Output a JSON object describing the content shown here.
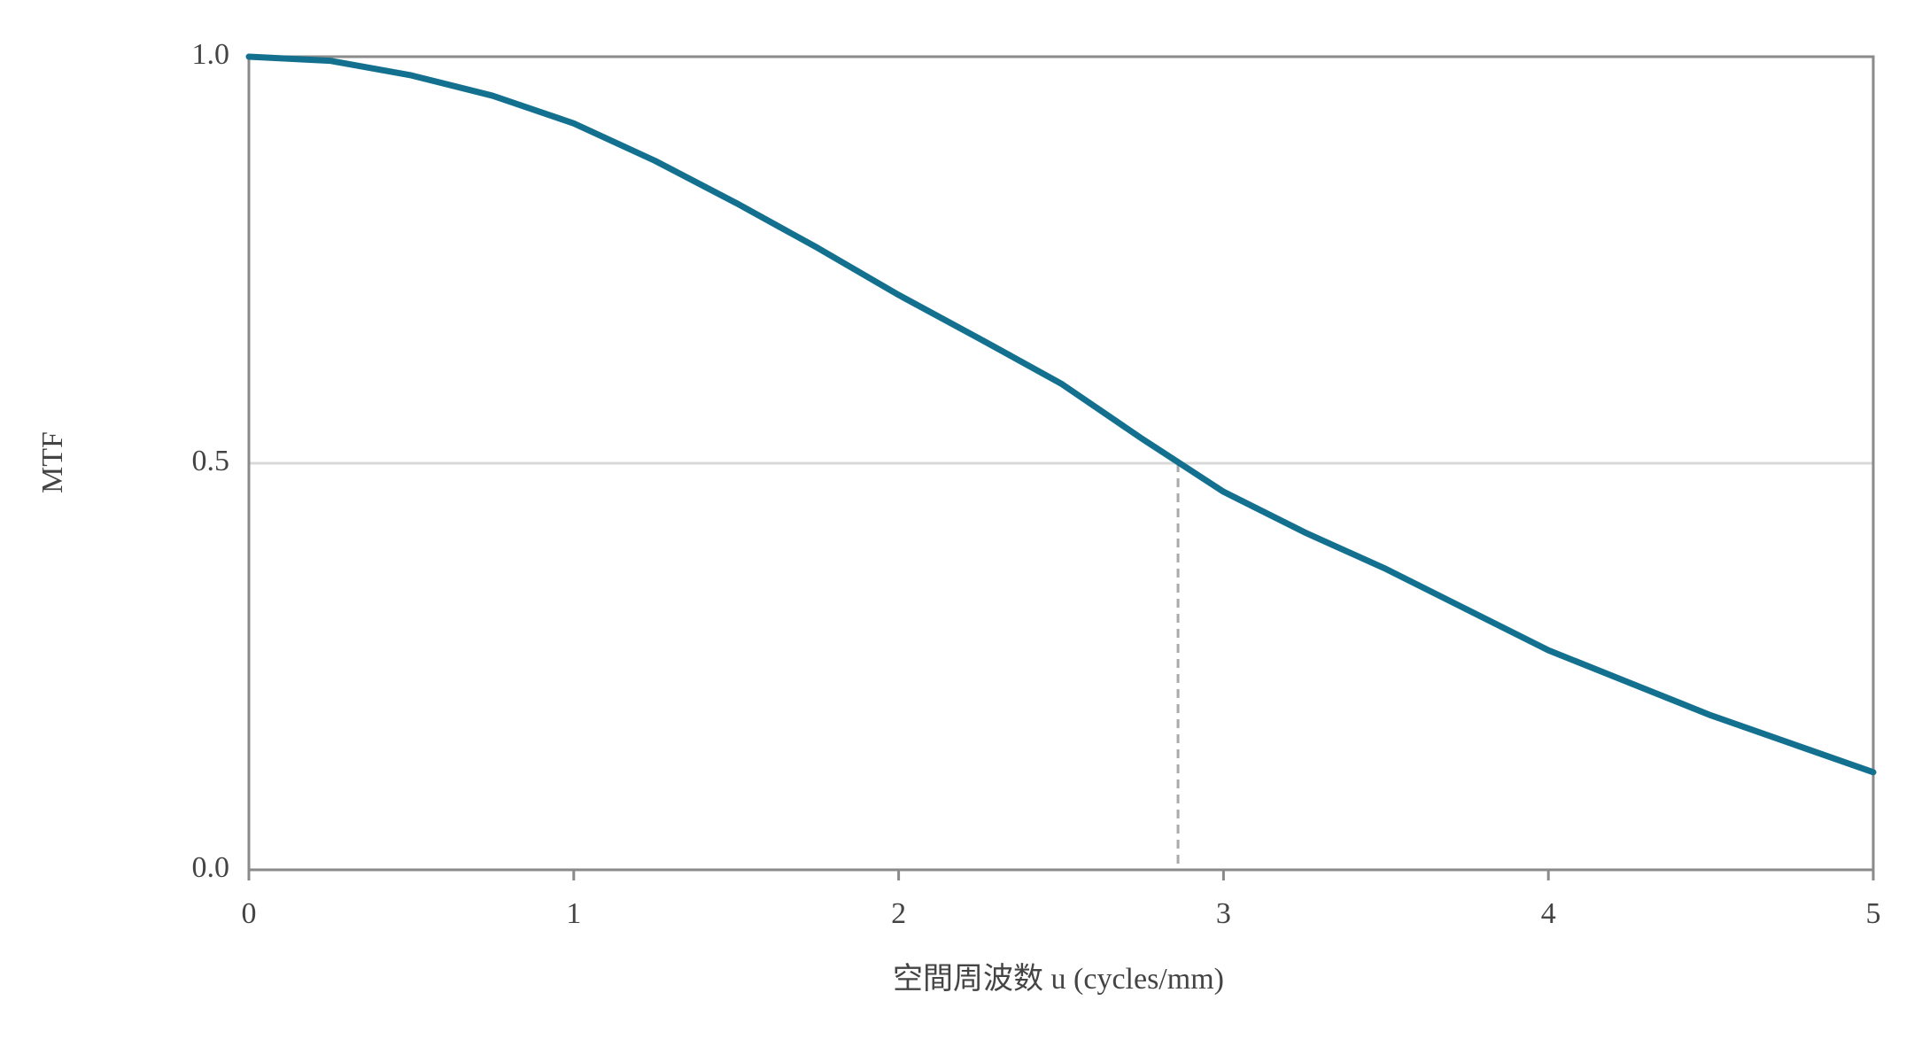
{
  "chart_data": {
    "type": "line",
    "x_label": "空間周波数 u (cycles/mm)",
    "y_label": "MTF",
    "x": [
      0,
      0.25,
      0.5,
      0.75,
      1,
      1.25,
      1.5,
      1.75,
      2,
      2.25,
      2.5,
      2.75,
      3,
      3.25,
      3.5,
      3.75,
      4,
      4.25,
      4.5,
      4.75,
      5
    ],
    "series": [
      {
        "name": "MTF",
        "color": "#13708f",
        "values": [
          1.0,
          0.995,
          0.977,
          0.952,
          0.918,
          0.872,
          0.82,
          0.765,
          0.707,
          0.653,
          0.598,
          0.53,
          0.465,
          0.415,
          0.37,
          0.32,
          0.27,
          0.23,
          0.19,
          0.155,
          0.12
        ]
      }
    ],
    "marker": {
      "x": 2.86,
      "y": 0.5
    },
    "xlim": [
      0,
      5
    ],
    "xticks": [
      0,
      1,
      2,
      3,
      4,
      5
    ],
    "ylim": [
      0,
      1
    ],
    "yticks": [
      {
        "value": 0,
        "label": "0.0"
      },
      {
        "value": 0.5,
        "label": "0.5"
      },
      {
        "value": 1,
        "label": "1.0"
      }
    ],
    "grid": true
  }
}
